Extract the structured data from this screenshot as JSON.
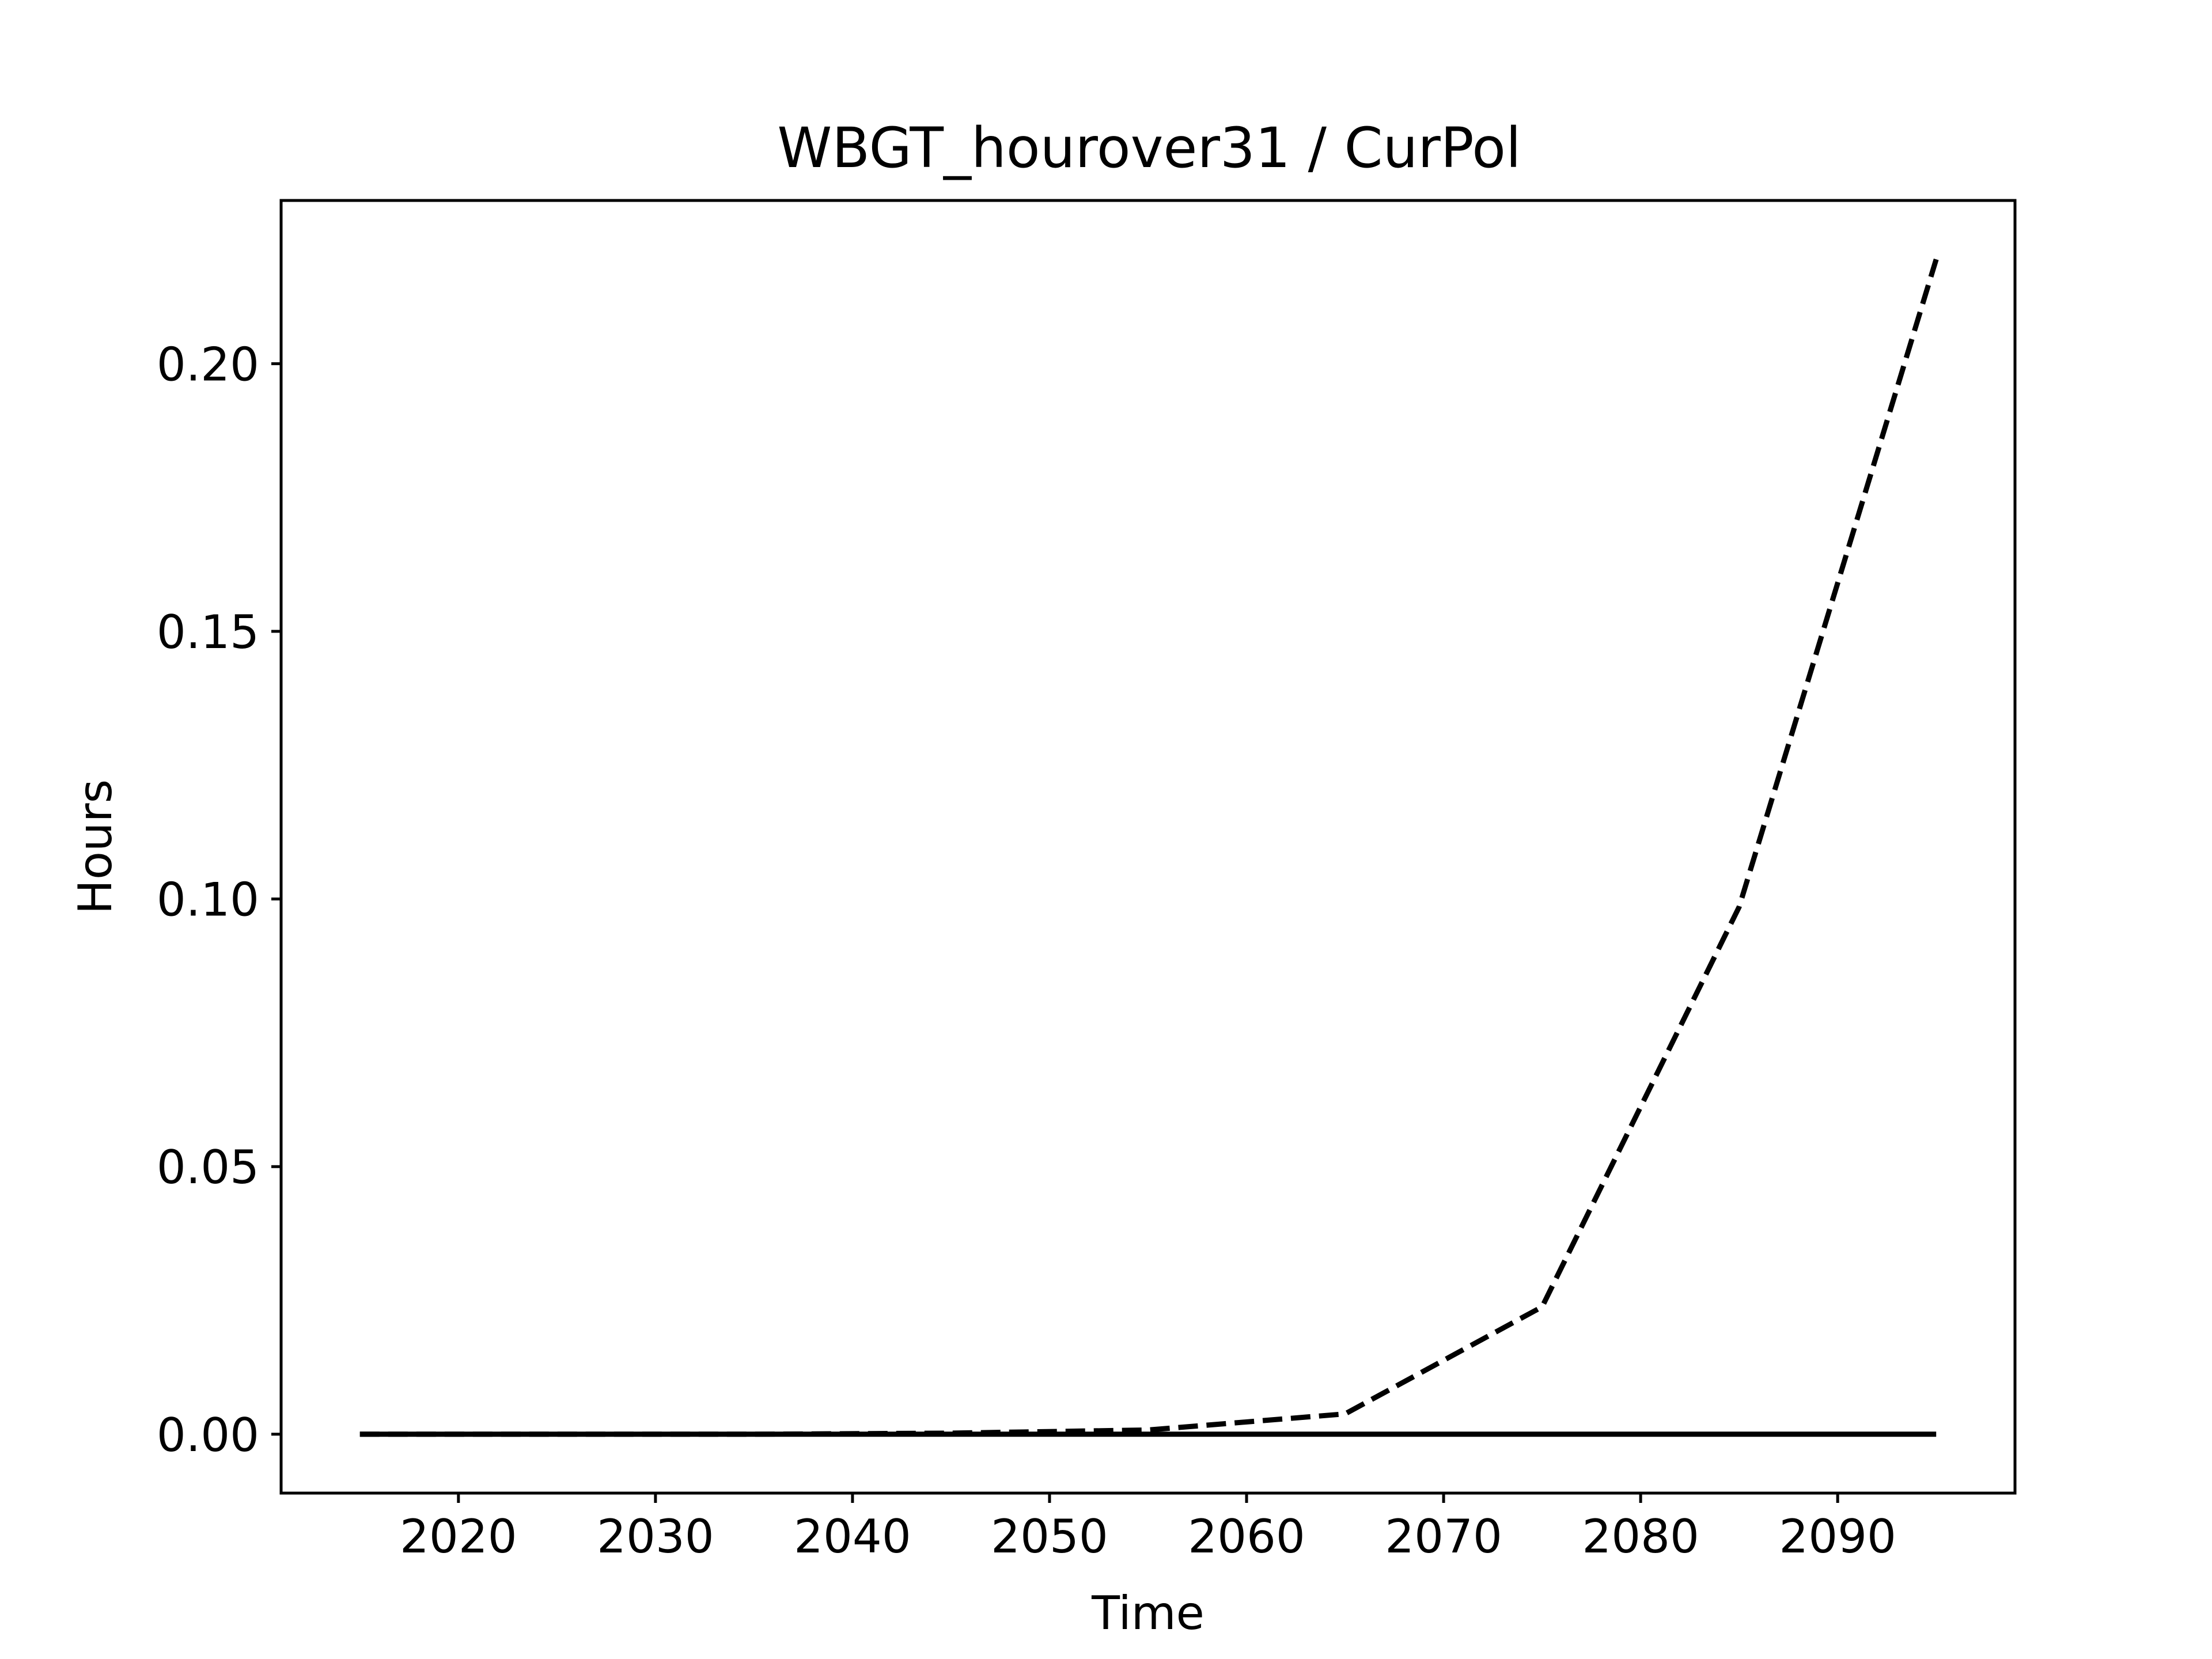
{
  "chart_data": {
    "type": "line",
    "title": "WBGT_hourover31 / CurPol",
    "xlabel": "Time",
    "ylabel": "Hours",
    "xlim": [
      2011,
      2099
    ],
    "ylim": [
      -0.011,
      0.2305
    ],
    "x_ticks": [
      2020,
      2030,
      2040,
      2050,
      2060,
      2070,
      2080,
      2090
    ],
    "y_ticks": [
      0.0,
      0.05,
      0.1,
      0.15,
      0.2
    ],
    "y_tick_labels": [
      "0.00",
      "0.05",
      "0.10",
      "0.15",
      "0.20"
    ],
    "grid": false,
    "series": [
      {
        "style": "dashed",
        "color": "#000000",
        "x": [
          2015,
          2025,
          2035,
          2045,
          2055,
          2065,
          2075,
          2085,
          2095
        ],
        "y": [
          0.0,
          0.0,
          0.0,
          0.0002,
          0.0008,
          0.0038,
          0.0238,
          0.0985,
          0.2195
        ]
      },
      {
        "style": "solid",
        "color": "#000000",
        "x": [
          2015,
          2025,
          2035,
          2045,
          2055,
          2065,
          2075,
          2085,
          2095
        ],
        "y": [
          0.0,
          0.0,
          0.0,
          0.0,
          0.0,
          0.0,
          0.0,
          0.0,
          0.0
        ]
      }
    ]
  }
}
